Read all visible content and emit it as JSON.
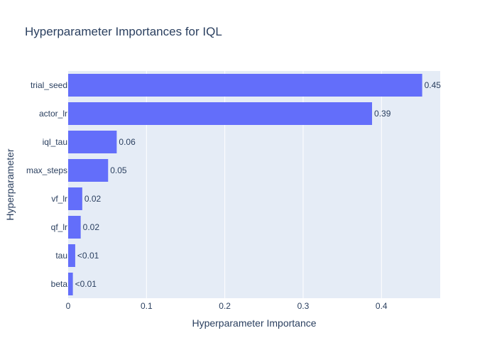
{
  "chart_data": {
    "type": "bar",
    "orientation": "horizontal",
    "title": "Hyperparameter Importances for IQL",
    "xlabel": "Hyperparameter Importance",
    "ylabel": "Hyperparameter",
    "xlim": [
      0,
      0.475
    ],
    "xticks": [
      0,
      0.1,
      0.2,
      0.3,
      0.4
    ],
    "xtick_labels": [
      "0",
      "0.1",
      "0.2",
      "0.3",
      "0.4"
    ],
    "grid": true,
    "categories": [
      "trial_seed",
      "actor_lr",
      "iql_tau",
      "max_steps",
      "vf_lr",
      "qf_lr",
      "tau",
      "beta"
    ],
    "values": [
      0.452,
      0.388,
      0.062,
      0.051,
      0.018,
      0.016,
      0.009,
      0.006
    ],
    "value_labels": [
      "0.45",
      "0.39",
      "0.06",
      "0.05",
      "0.02",
      "0.02",
      "<0.01",
      "<0.01"
    ],
    "bar_color": "#636efa",
    "plot_background": "#e5ecf6",
    "grid_color": "#ffffff",
    "text_color": "#2a3f5f"
  }
}
